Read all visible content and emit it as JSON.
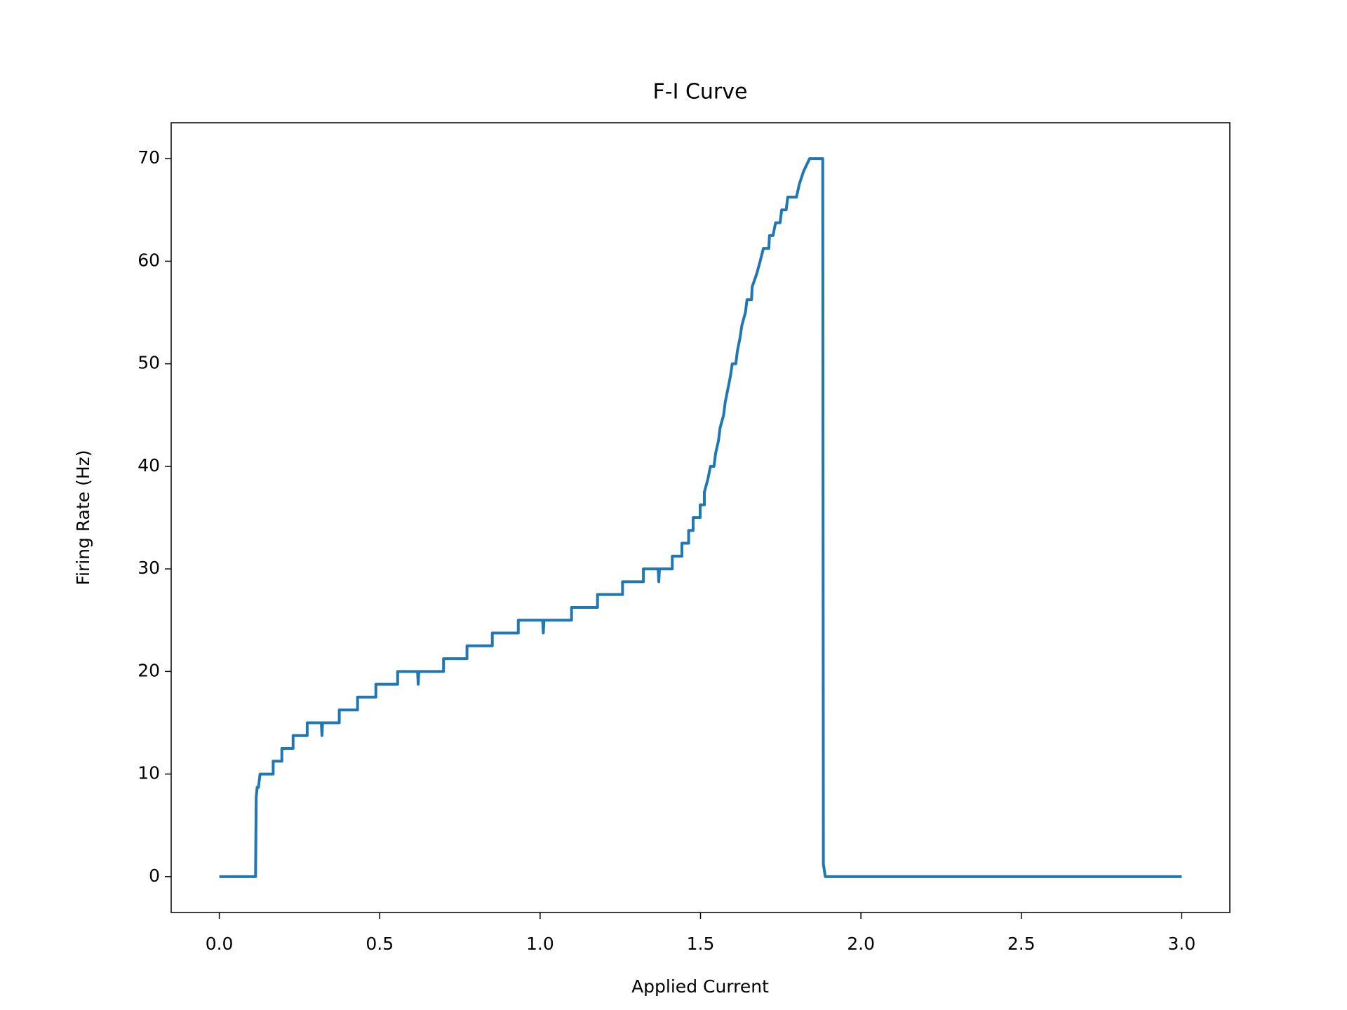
{
  "chart_data": {
    "type": "line",
    "title": "F-I Curve",
    "xlabel": "Applied Current",
    "ylabel": "Firing Rate (Hz)",
    "x": [
      0,
      0.113,
      0.115,
      0.118,
      0.122,
      0.127,
      0.168,
      0.168,
      0.195,
      0.195,
      0.23,
      0.23,
      0.274,
      0.274,
      0.318,
      0.32,
      0.322,
      0.374,
      0.374,
      0.431,
      0.431,
      0.488,
      0.488,
      0.556,
      0.556,
      0.618,
      0.62,
      0.622,
      0.699,
      0.699,
      0.772,
      0.772,
      0.851,
      0.851,
      0.932,
      0.932,
      1.008,
      1.01,
      1.012,
      1.098,
      1.098,
      1.179,
      1.179,
      1.257,
      1.257,
      1.322,
      1.322,
      1.368,
      1.37,
      1.372,
      1.412,
      1.412,
      1.442,
      1.442,
      1.463,
      1.463,
      1.477,
      1.477,
      1.499,
      1.499,
      1.512,
      1.512,
      1.523,
      1.531,
      1.542,
      1.547,
      1.556,
      1.561,
      1.572,
      1.577,
      1.585,
      1.593,
      1.599,
      1.61,
      1.615,
      1.623,
      1.629,
      1.64,
      1.645,
      1.659,
      1.661,
      1.675,
      1.686,
      1.696,
      1.713,
      1.715,
      1.726,
      1.734,
      1.748,
      1.753,
      1.767,
      1.772,
      1.799,
      1.808,
      1.821,
      1.84,
      1.881,
      1.883,
      1.889,
      3
    ],
    "series": [
      {
        "name": "F-I",
        "color": "#1f77b4",
        "values": [
          0,
          0,
          7.7,
          8.7,
          8.7,
          10,
          10,
          11.25,
          11.25,
          12.5,
          12.5,
          13.75,
          13.75,
          15,
          15,
          13.75,
          15,
          15,
          16.25,
          16.25,
          17.5,
          17.5,
          18.75,
          18.75,
          20,
          20,
          18.75,
          20,
          20,
          21.25,
          21.25,
          22.5,
          22.5,
          23.75,
          23.75,
          25,
          25,
          23.75,
          25,
          25,
          26.25,
          26.25,
          27.5,
          27.5,
          28.75,
          28.75,
          30,
          30,
          28.75,
          30,
          30,
          31.25,
          31.25,
          32.5,
          32.5,
          33.75,
          33.75,
          35,
          35,
          36.25,
          36.25,
          37.5,
          38.75,
          40,
          40,
          41.25,
          42.5,
          43.75,
          45,
          46.25,
          47.5,
          48.75,
          50,
          50,
          51.25,
          52.5,
          53.75,
          55,
          56.25,
          56.25,
          57.5,
          58.75,
          60,
          61.25,
          61.25,
          62.5,
          62.5,
          63.75,
          63.75,
          65,
          65,
          66.25,
          66.25,
          67.5,
          68.75,
          70,
          70,
          1.2,
          0,
          0
        ]
      }
    ],
    "xlim": [
      -0.15,
      3.15
    ],
    "ylim": [
      -3.5,
      73.5
    ],
    "xticks": [
      {
        "value": 0,
        "label": "0.0"
      },
      {
        "value": 0.5,
        "label": "0.5"
      },
      {
        "value": 1,
        "label": "1.0"
      },
      {
        "value": 1.5,
        "label": "1.5"
      },
      {
        "value": 2,
        "label": "2.0"
      },
      {
        "value": 2.5,
        "label": "2.5"
      },
      {
        "value": 3,
        "label": "3.0"
      }
    ],
    "yticks": [
      0,
      10,
      20,
      30,
      40,
      50,
      60,
      70
    ],
    "grid": false
  }
}
